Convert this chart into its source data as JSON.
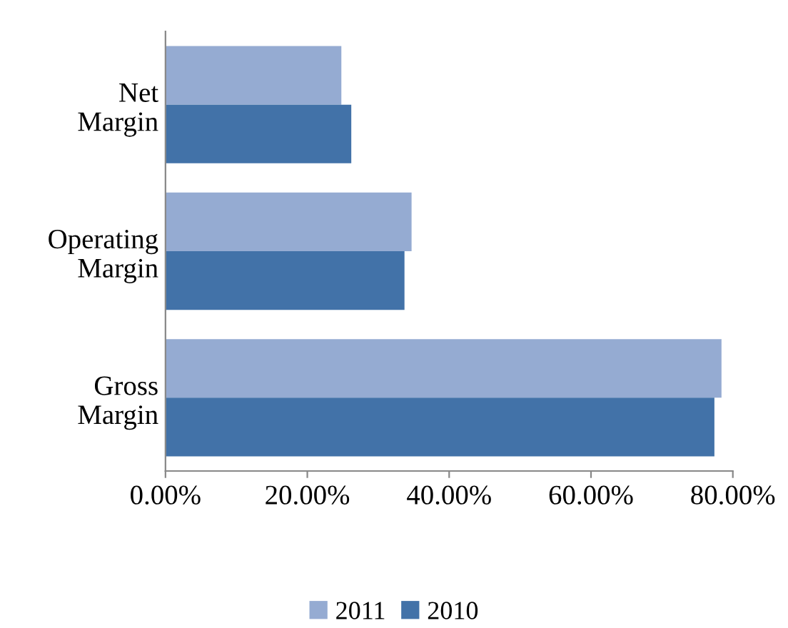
{
  "chart_data": {
    "type": "bar",
    "orientation": "horizontal",
    "categories": [
      "Net\nMargin",
      "Operating\nMargin",
      "Gross\nMargin"
    ],
    "series": [
      {
        "name": "2011",
        "color": "#95abd2",
        "values": [
          24.8,
          34.7,
          78.4
        ]
      },
      {
        "name": "2010",
        "color": "#4272a8",
        "values": [
          26.2,
          33.7,
          77.4
        ]
      }
    ],
    "xlim": [
      0,
      80
    ],
    "xticks": [
      {
        "value": 0,
        "label": "0.00%"
      },
      {
        "value": 20,
        "label": "20.00%"
      },
      {
        "value": 40,
        "label": "40.00%"
      },
      {
        "value": 60,
        "label": "60.00%"
      },
      {
        "value": 80,
        "label": "80.00%"
      }
    ],
    "grid": false,
    "legend": "bottom"
  }
}
